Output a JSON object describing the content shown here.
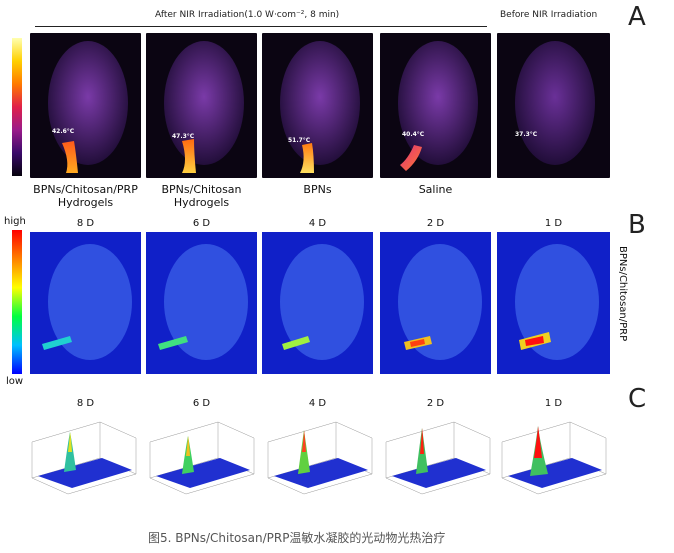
{
  "panel_a": {
    "letter": "A",
    "header_before": "Before NIR Irradiation",
    "header_after": "After NIR Irradiation(1.0 W·com⁻², 8 min)",
    "images": [
      {
        "label": "BPNs/Chitosan/PRP Hydrogels",
        "temp": "42.6°C"
      },
      {
        "label": "BPNs/Chitosan Hydrogels",
        "temp": "47.3°C"
      },
      {
        "label": "BPNs",
        "temp": "51.7°C"
      },
      {
        "label": "Saline",
        "temp": "40.4°C"
      },
      {
        "label": "",
        "temp": "37.3°C"
      }
    ]
  },
  "panel_b": {
    "letter": "B",
    "legend_high": "high",
    "legend_low": "low",
    "group_label": "BPNs/Chitosan/PRP",
    "days": [
      "8 D",
      "6 D",
      "4 D",
      "2 D",
      "1 D"
    ]
  },
  "panel_c": {
    "letter": "C",
    "days": [
      "8 D",
      "6 D",
      "4 D",
      "2 D",
      "1 D"
    ]
  },
  "caption": "图5. BPNs/Chitosan/PRP温敏水凝胶的光动物光热治疗"
}
